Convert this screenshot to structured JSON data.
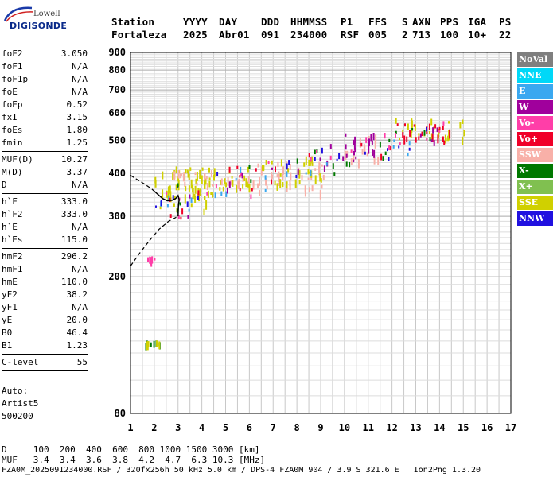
{
  "logo": {
    "line1": "Lowell",
    "line2": "DIGISONDE"
  },
  "header": {
    "line1": [
      "Station",
      "YYYY",
      "DAY",
      "DDD",
      "HHMMSS",
      "P1",
      "FFS",
      "S",
      "AXN",
      "PPS",
      "IGA",
      "PS"
    ],
    "line2": [
      "Fortaleza",
      "2025",
      "Abr01",
      "091",
      "234000",
      "RSF",
      "005",
      "2",
      "713",
      "100",
      "10+",
      "22"
    ]
  },
  "params": {
    "group1": [
      {
        "k": "foF2",
        "v": "3.050"
      },
      {
        "k": "foF1",
        "v": "N/A"
      },
      {
        "k": "foF1p",
        "v": "N/A"
      },
      {
        "k": "foE",
        "v": "N/A"
      },
      {
        "k": "foEp",
        "v": "0.52"
      },
      {
        "k": "fxI",
        "v": "3.15"
      },
      {
        "k": "foEs",
        "v": "1.80"
      },
      {
        "k": "fmin",
        "v": "1.25"
      }
    ],
    "group2": [
      {
        "k": "MUF(D)",
        "v": "10.27"
      },
      {
        "k": "M(D)",
        "v": "3.37"
      },
      {
        "k": "D",
        "v": "N/A"
      }
    ],
    "group3": [
      {
        "k": "h`F",
        "v": "333.0"
      },
      {
        "k": "h`F2",
        "v": "333.0"
      },
      {
        "k": "h`E",
        "v": "N/A"
      },
      {
        "k": "h`Es",
        "v": "115.0"
      }
    ],
    "group4": [
      {
        "k": "hmF2",
        "v": "296.2"
      },
      {
        "k": "hmF1",
        "v": "N/A"
      },
      {
        "k": "hmE",
        "v": "110.0"
      },
      {
        "k": "yF2",
        "v": "38.2"
      },
      {
        "k": "yF1",
        "v": "N/A"
      },
      {
        "k": "yE",
        "v": "20.0"
      },
      {
        "k": "B0",
        "v": "46.4"
      },
      {
        "k": "B1",
        "v": "1.23"
      }
    ],
    "group5": [
      {
        "k": "C-level",
        "v": "55"
      }
    ]
  },
  "auto": {
    "line1": "Auto:",
    "line2": "Artist5",
    "line3": "500200"
  },
  "bottom": {
    "d_row": "D     100  200  400  600  800 1000 1500 3000 [km]",
    "muf_row": "MUF   3.4  3.4  3.6  3.8  4.2  4.7  6.3 10.3 [MHz]",
    "file_row": "FZA0M_2025091234000.RSF / 320fx256h 50 kHz 5.0 km / DPS-4 FZA0M 904 / 3.9 S 321.6 E   Ion2Png 1.3.20"
  },
  "legend": [
    {
      "label": "NoVal",
      "color": "#7f7f7f"
    },
    {
      "label": "NNE",
      "color": "#00d8f8"
    },
    {
      "label": "E",
      "color": "#3aa8f0"
    },
    {
      "label": "W",
      "color": "#a0009c"
    },
    {
      "label": "Vo-",
      "color": "#ff3ea8"
    },
    {
      "label": "Vo+",
      "color": "#f00028"
    },
    {
      "label": "SSW",
      "color": "#f8b0a8"
    },
    {
      "label": "X-",
      "color": "#007800"
    },
    {
      "label": "X+",
      "color": "#80c050"
    },
    {
      "label": "SSE",
      "color": "#d0d000"
    },
    {
      "label": "NNW",
      "color": "#2010e0"
    }
  ],
  "chart_data": {
    "type": "scatter",
    "xlabel": "",
    "ylabel": "",
    "xlim": [
      1,
      17
    ],
    "ylim": [
      80,
      900
    ],
    "y_scale": "log",
    "x_ticks": [
      1,
      2,
      3,
      4,
      5,
      6,
      7,
      8,
      9,
      10,
      11,
      12,
      13,
      14,
      15,
      16,
      17
    ],
    "y_ticks": [
      80,
      200,
      300,
      400,
      500,
      600,
      700,
      800,
      900
    ],
    "grid": true,
    "clusters": [
      {
        "name": "Es",
        "color": "#007800",
        "x": [
          1.5,
          2.2
        ],
        "y": [
          128,
          131
        ]
      },
      {
        "name": "Es",
        "color": "#d0d000",
        "x": [
          1.5,
          2.2
        ],
        "y": [
          128,
          131
        ]
      },
      {
        "name": "low",
        "color": "#ff3ea8",
        "x": [
          1.7,
          2.0
        ],
        "y": [
          223,
          230
        ]
      },
      {
        "name": "F2-o",
        "color": "#d0d000",
        "x": [
          2.0,
          4.6
        ],
        "y": [
          315,
          420
        ]
      },
      {
        "name": "F2-dense",
        "color": "#d0d000",
        "x": [
          2.6,
          6.0
        ],
        "y": [
          360,
          420
        ]
      },
      {
        "name": "F2-ssw",
        "color": "#f8b0a8",
        "x": [
          2.8,
          6.2
        ],
        "y": [
          370,
          410
        ]
      },
      {
        "name": "mid",
        "color": "#f8b0a8",
        "x": [
          6.3,
          9.2
        ],
        "y": [
          355,
          440
        ]
      },
      {
        "name": "mid-sse",
        "color": "#d0d000",
        "x": [
          6.5,
          9.0
        ],
        "y": [
          370,
          450
        ]
      },
      {
        "name": "high",
        "color": "#f8b0a8",
        "x": [
          9.8,
          11.4
        ],
        "y": [
          440,
          520
        ]
      },
      {
        "name": "high-mix",
        "color": "#a0009c",
        "x": [
          9.9,
          11.3
        ],
        "y": [
          450,
          530
        ]
      },
      {
        "name": "top",
        "color": "#d0d000",
        "x": [
          12.1,
          15.2
        ],
        "y": [
          500,
          580
        ]
      },
      {
        "name": "top-mix",
        "color": "#f00028",
        "x": [
          12.2,
          14.8
        ],
        "y": [
          505,
          560
        ]
      }
    ],
    "trace": {
      "solid": [
        [
          2.0,
          355
        ],
        [
          2.35,
          338
        ],
        [
          2.55,
          333
        ],
        [
          2.75,
          334
        ],
        [
          2.9,
          338
        ],
        [
          3.0,
          345
        ],
        [
          3.05,
          335
        ],
        [
          3.02,
          325
        ],
        [
          3.0,
          300
        ]
      ],
      "dashed_upper": [
        [
          1.0,
          395
        ],
        [
          1.3,
          383
        ],
        [
          1.6,
          372
        ],
        [
          1.9,
          360
        ],
        [
          2.0,
          355
        ]
      ],
      "dashed_lower": [
        [
          1.0,
          215
        ],
        [
          1.4,
          235
        ],
        [
          1.8,
          255
        ],
        [
          2.2,
          275
        ],
        [
          2.6,
          290
        ],
        [
          3.0,
          300
        ]
      ]
    }
  }
}
